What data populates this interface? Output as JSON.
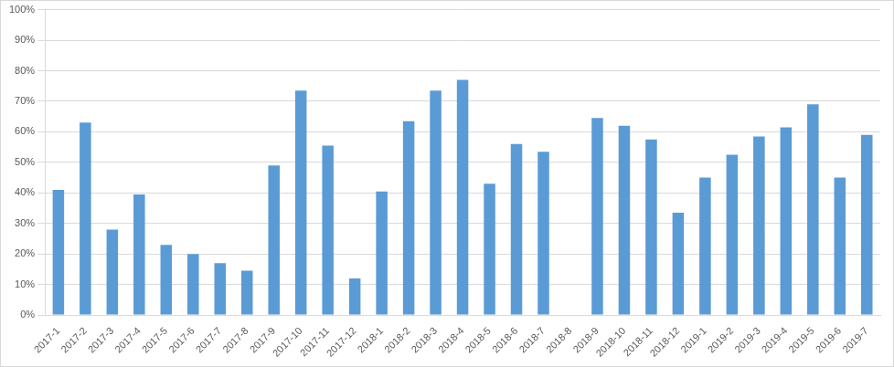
{
  "chart_data": {
    "type": "bar",
    "categories": [
      "2017-1",
      "2017-2",
      "2017-3",
      "2017-4",
      "2017-5",
      "2017-6",
      "2017-7",
      "2017-8",
      "2017-9",
      "2017-10",
      "2017-11",
      "2017-12",
      "2018-1",
      "2018-2",
      "2018-3",
      "2018-4",
      "2018-5",
      "2018-6",
      "2018-7",
      "2018-8",
      "2018-9",
      "2018-10",
      "2018-11",
      "2018-12",
      "2019-1",
      "2019-2",
      "2019-3",
      "2019-4",
      "2019-5",
      "2019-6",
      "2019-7"
    ],
    "values": [
      41,
      63,
      28,
      39.5,
      23,
      20,
      17,
      14.5,
      49,
      73.5,
      55.5,
      12,
      40.5,
      63.5,
      73.5,
      77,
      43,
      56,
      53.5,
      null,
      64.5,
      62,
      57.5,
      33.5,
      45,
      52.5,
      58.5,
      61.5,
      69,
      45,
      59
    ],
    "color": "#5b9bd5",
    "ylim": [
      0,
      100
    ],
    "yticks": [
      {
        "value": 0,
        "label": "0%"
      },
      {
        "value": 10,
        "label": "10%"
      },
      {
        "value": 20,
        "label": "20%"
      },
      {
        "value": 30,
        "label": "30%"
      },
      {
        "value": 40,
        "label": "40%"
      },
      {
        "value": 50,
        "label": "50%"
      },
      {
        "value": 60,
        "label": "60%"
      },
      {
        "value": 70,
        "label": "70%"
      },
      {
        "value": 80,
        "label": "80%"
      },
      {
        "value": 90,
        "label": "90%"
      },
      {
        "value": 100,
        "label": "100%"
      }
    ],
    "grid": true
  }
}
